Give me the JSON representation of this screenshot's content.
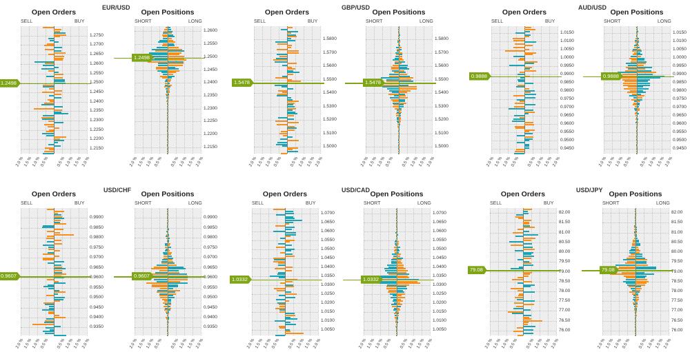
{
  "colors": {
    "orange": "#f5901e",
    "teal": "#1ba2b4",
    "price": "#7ea516",
    "plot_bg": "#eeeeee"
  },
  "common": {
    "orders_title": "Open Orders",
    "positions_title": "Open Positions",
    "sell": "SELL",
    "buy": "BUY",
    "short": "SHORT",
    "long": "LONG",
    "xticks": [
      "2.0 %",
      "1.5 %",
      "1.0 %",
      "0.5 %",
      "0.5 %",
      "1.0 %",
      "1.5 %",
      "2.0 %"
    ]
  },
  "chart_data": [
    {
      "type": "bar",
      "pair": "EUR/USD",
      "current_price": "1.2498",
      "yticks": [
        "1.2600",
        "1.2550",
        "1.2500",
        "1.2450",
        "1.2400",
        "1.2350",
        "1.2300",
        "1.2250",
        "1.2200",
        "1.2150"
      ],
      "orders_yticks": [
        "1.2750",
        "1.2700",
        "1.2650",
        "1.2600",
        "1.2550",
        "1.2500",
        "1.2450",
        "1.2400",
        "1.2350",
        "1.2300",
        "1.2250",
        "1.2200",
        "1.2150"
      ],
      "orders_ylim": [
        1.2125,
        1.28
      ],
      "positions_ylim": [
        1.2125,
        1.262
      ],
      "xlim": [
        -2.0,
        2.0
      ]
    },
    {
      "type": "bar",
      "pair": "GBP/USD",
      "current_price": "1.5478",
      "orders_yticks": [
        "1.5800",
        "1.5700",
        "1.5600",
        "1.5500",
        "1.5400",
        "1.5300",
        "1.5200",
        "1.5100",
        "1.5000"
      ],
      "yticks": [
        "1.5800",
        "1.5700",
        "1.5600",
        "1.5500",
        "1.5400",
        "1.5300",
        "1.5200",
        "1.5100",
        "1.5000"
      ],
      "orders_ylim": [
        1.495,
        1.59
      ],
      "positions_ylim": [
        1.495,
        1.59
      ],
      "xlim": [
        -2.0,
        2.0
      ]
    },
    {
      "type": "bar",
      "pair": "AUD/USD",
      "current_price": "0.9888",
      "orders_yticks": [
        "1.0150",
        "1.0100",
        "1.0050",
        "1.0000",
        "0.9950",
        "0.9900",
        "0.9850",
        "0.9800",
        "0.9750",
        "0.9700",
        "0.9650",
        "0.9600",
        "0.9550",
        "0.9500",
        "0.9450"
      ],
      "yticks": [
        "1.0150",
        "1.0100",
        "1.0050",
        "1.0000",
        "0.9950",
        "0.9900",
        "0.9850",
        "0.9800",
        "0.9750",
        "0.9700",
        "0.9650",
        "0.9600",
        "0.9550",
        "0.9500",
        "0.9450"
      ],
      "orders_ylim": [
        0.942,
        1.019
      ],
      "positions_ylim": [
        0.942,
        1.019
      ],
      "xlim": [
        -2.0,
        2.0
      ]
    },
    {
      "type": "bar",
      "pair": "USD/CHF",
      "current_price": "0.9607",
      "orders_yticks": [
        "0.9900",
        "0.9850",
        "0.9800",
        "0.9750",
        "0.9700",
        "0.9650",
        "0.9600",
        "0.9550",
        "0.9500",
        "0.9450",
        "0.9400",
        "0.9350"
      ],
      "yticks": [
        "0.9900",
        "0.9850",
        "0.9800",
        "0.9750",
        "0.9700",
        "0.9650",
        "0.9600",
        "0.9550",
        "0.9500",
        "0.9450",
        "0.9400",
        "0.9350"
      ],
      "orders_ylim": [
        0.931,
        0.995
      ],
      "positions_ylim": [
        0.931,
        0.995
      ],
      "xlim": [
        -2.0,
        2.0
      ]
    },
    {
      "type": "bar",
      "pair": "USD/CAD",
      "current_price": "1.0332",
      "orders_yticks": [
        "1.0700",
        "1.0650",
        "1.0600",
        "1.0550",
        "1.0500",
        "1.0450",
        "1.0400",
        "1.0350",
        "1.0300",
        "1.0250",
        "1.0200",
        "1.0150",
        "1.0100",
        "1.0050"
      ],
      "yticks": [
        "1.0700",
        "1.0650",
        "1.0600",
        "1.0550",
        "1.0500",
        "1.0450",
        "1.0400",
        "1.0350",
        "1.0300",
        "1.0250",
        "1.0200",
        "1.0150",
        "1.0100",
        "1.0050"
      ],
      "orders_ylim": [
        1.002,
        1.073
      ],
      "positions_ylim": [
        1.002,
        1.073
      ],
      "xlim": [
        -2.0,
        2.0
      ]
    },
    {
      "type": "bar",
      "pair": "USD/JPY",
      "current_price": "79.08",
      "orders_yticks": [
        "82.00",
        "81.50",
        "81.00",
        "80.50",
        "80.00",
        "79.50",
        "79.00",
        "78.50",
        "78.00",
        "77.50",
        "77.00",
        "76.50",
        "76.00"
      ],
      "yticks": [
        "82.00",
        "81.50",
        "81.00",
        "80.50",
        "80.00",
        "79.50",
        "79.00",
        "78.50",
        "78.00",
        "77.50",
        "77.00",
        "76.50",
        "76.00"
      ],
      "orders_ylim": [
        75.75,
        82.25
      ],
      "positions_ylim": [
        75.75,
        82.25
      ],
      "xlim": [
        -2.0,
        2.0
      ]
    }
  ]
}
